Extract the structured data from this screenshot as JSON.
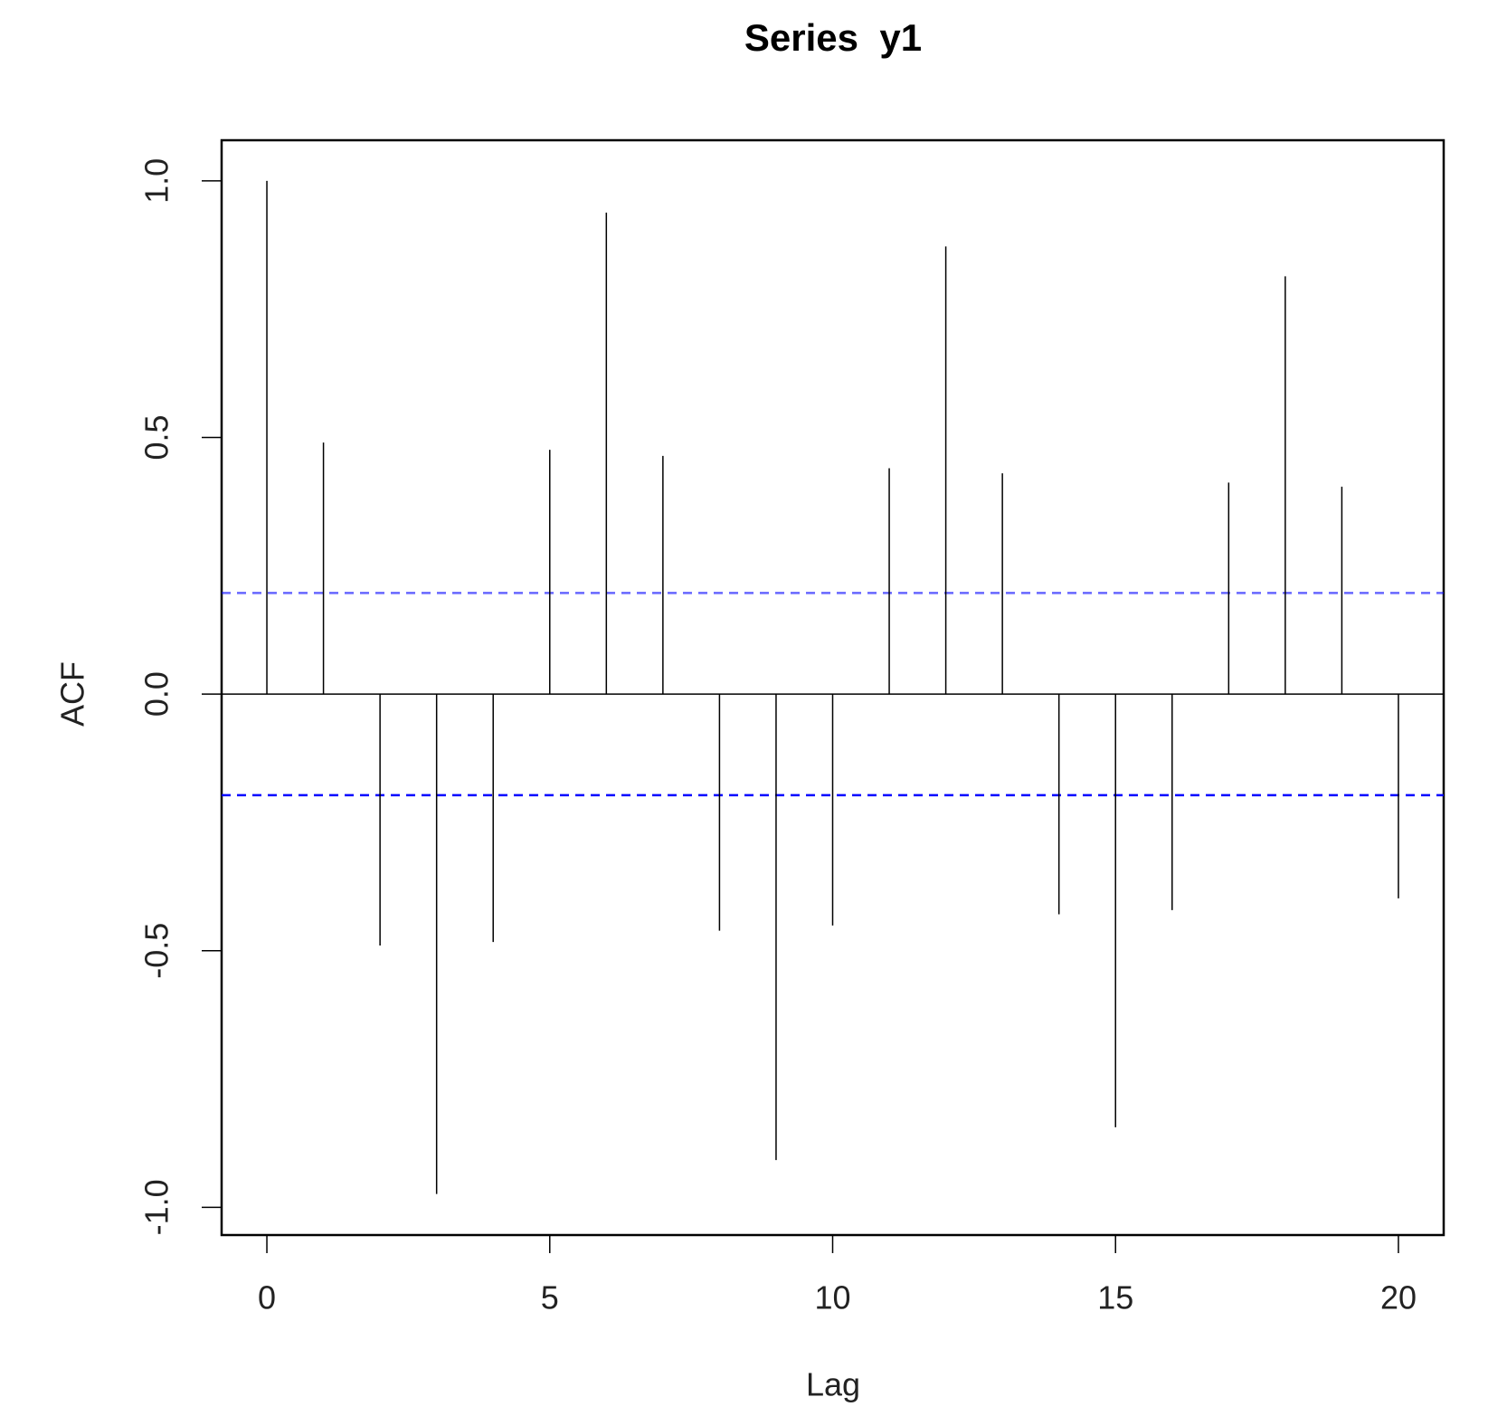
{
  "chart_data": {
    "type": "acf",
    "title": "Series  y1",
    "x_label": "Lag",
    "y_label": "ACF",
    "x": [
      0,
      1,
      2,
      3,
      4,
      5,
      6,
      7,
      8,
      9,
      10,
      11,
      12,
      13,
      14,
      15,
      16,
      17,
      18,
      19,
      20
    ],
    "values": [
      1.0,
      0.49,
      -0.49,
      -0.974,
      -0.483,
      0.476,
      0.938,
      0.464,
      -0.461,
      -0.908,
      -0.451,
      0.44,
      0.872,
      0.43,
      -0.429,
      -0.844,
      -0.421,
      0.412,
      0.814,
      0.404,
      -0.398
    ],
    "color": "#000000",
    "confidence_lines": [
      0.197,
      -0.197
    ],
    "confidence_color": "#0000ff",
    "xlim": [
      -0.8,
      20.8
    ],
    "xticks": [
      0,
      5,
      10,
      15,
      20
    ],
    "ylim": [
      -1.054,
      1.079
    ],
    "yticks": [
      {
        "value": -1,
        "label": "-1.0"
      },
      -0.5,
      {
        "value": 0,
        "label": "0.0"
      },
      0.5,
      {
        "value": 1,
        "label": "1.0"
      }
    ]
  }
}
